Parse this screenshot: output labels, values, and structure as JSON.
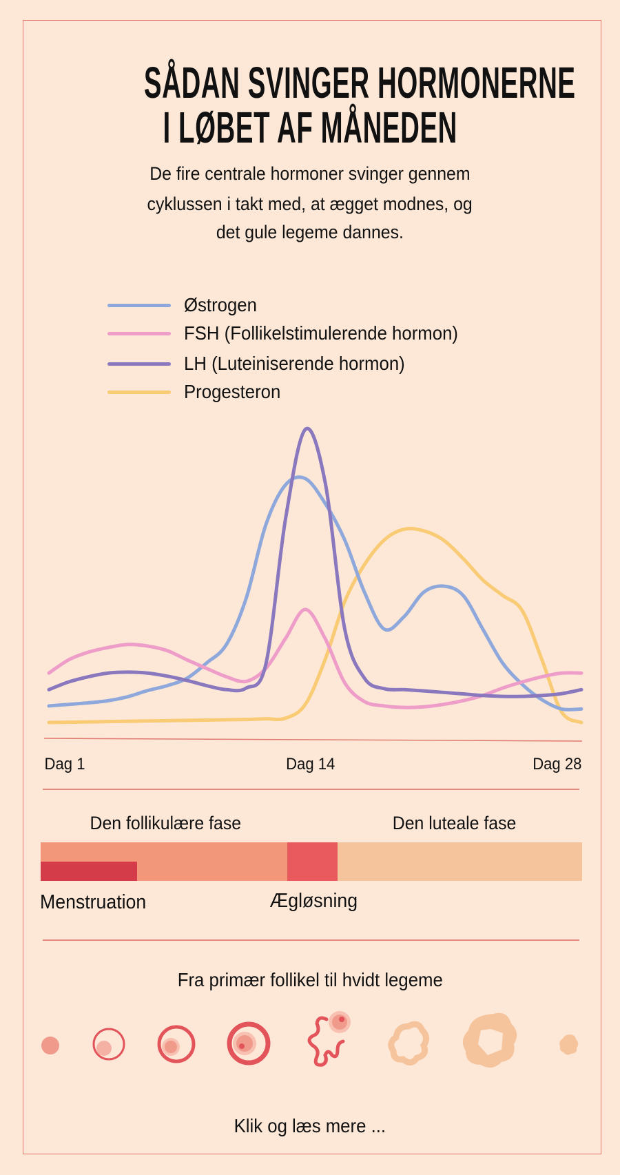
{
  "header": {
    "title_line1": "SÅDAN SVINGER HORMONERNE",
    "title_line2": "I LØBET AF MÅNEDEN",
    "subtitle_lines": [
      "De fire centrale hormoner svinger gennem",
      "cyklussen i takt med, at ægget modnes, og",
      "det gule legeme dannes."
    ]
  },
  "chart_data": {
    "type": "line",
    "x": [
      1,
      2,
      3,
      4,
      5,
      6,
      7,
      8,
      9,
      10,
      11,
      12,
      13,
      14,
      15,
      16,
      17,
      18,
      19,
      20,
      21,
      22,
      23,
      24,
      25,
      26,
      27,
      28
    ],
    "x_tick_labels": [
      "Dag 1",
      "Dag 14",
      "Dag 28"
    ],
    "x_tick_days": [
      1,
      14,
      28
    ],
    "ylim": [
      0,
      100
    ],
    "y_axis_visible": false,
    "grid": false,
    "legend_placement": "top-left",
    "series": [
      {
        "name": "Østrogen",
        "color": "#8fa8dc",
        "values": [
          11,
          11.5,
          12,
          12.7,
          14,
          16,
          17.6,
          20,
          25,
          31,
          46,
          70,
          83,
          85,
          77,
          65,
          48,
          36,
          40,
          48,
          50,
          47,
          36,
          25,
          18,
          13,
          10,
          10
        ]
      },
      {
        "name": "FSH (Follikelstimulerende hormon)",
        "color": "#ee9cc8",
        "values": [
          21.7,
          26,
          28.5,
          30,
          31,
          30.5,
          29,
          26,
          23.2,
          20.5,
          19,
          23.2,
          33,
          42.4,
          33,
          18.5,
          12.4,
          11,
          10.5,
          10.7,
          11.5,
          12.7,
          14.4,
          16.8,
          18.8,
          20.5,
          21.7,
          21.7
        ]
      },
      {
        "name": "LH (Luteiniserende hormon)",
        "color": "#8a78be",
        "values": [
          16.3,
          18.8,
          20.5,
          21.7,
          22,
          21.7,
          20.7,
          19.3,
          17.6,
          16.3,
          16.8,
          24.6,
          72,
          101,
          84,
          36,
          20,
          16.6,
          16.3,
          15.9,
          15.4,
          14.9,
          14.4,
          14.1,
          14.1,
          14.4,
          15,
          16.3
        ]
      },
      {
        "name": "Progesteron",
        "color": "#f9cb74",
        "values": [
          5.6,
          5.7,
          5.8,
          5.9,
          6,
          6.1,
          6.2,
          6.3,
          6.4,
          6.5,
          6.6,
          6.8,
          7,
          11.5,
          26,
          45,
          57,
          65,
          68.5,
          68,
          65,
          59,
          52,
          47,
          42,
          26,
          9,
          5.6
        ]
      }
    ]
  },
  "phases": {
    "follicular_label": "Den follikulære fase",
    "luteal_label": "Den luteale fase",
    "menstruation_label": "Menstruation",
    "ovulation_label": "Ægløsning",
    "colors": {
      "follicular": "#f2977a",
      "menstruation": "#d43c4a",
      "ovulation": "#e95a5e",
      "luteal": "#f6c49c"
    }
  },
  "follicles": {
    "heading": "Fra primær follikel til hvidt legeme",
    "stages": [
      "primary-follicle-icon",
      "secondary-follicle-icon",
      "tertiary-follicle-icon",
      "mature-follicle-icon",
      "ruptured-follicle-icon",
      "corpus-luteum-icon",
      "large-corpus-luteum-icon",
      "corpus-albicans-icon"
    ]
  },
  "footer": {
    "cta": "Klik og læs mere ..."
  },
  "colors": {
    "background": "#fde8d8",
    "border": "#e8736c"
  }
}
